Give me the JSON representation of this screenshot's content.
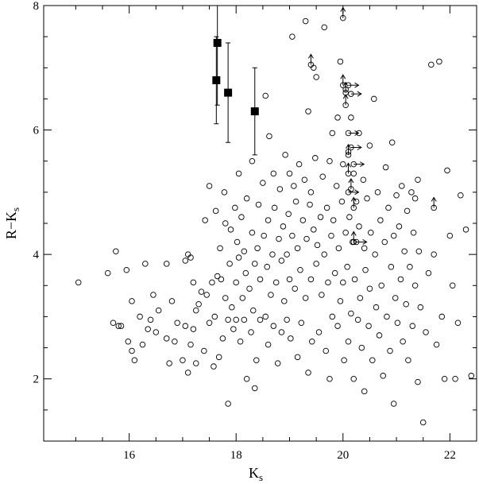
{
  "chart_data": {
    "type": "scatter",
    "title": "",
    "xlabel": "K",
    "xlabel_sub": "s",
    "ylabel": "R−K",
    "ylabel_sub": "s",
    "xlim": [
      14.4,
      22.5
    ],
    "ylim": [
      1.0,
      8.0
    ],
    "xticks": [
      16,
      18,
      20,
      22
    ],
    "yticks": [
      2,
      4,
      6,
      8
    ],
    "xtick_labels": [
      "16",
      "18",
      "20",
      "22"
    ],
    "ytick_labels": [
      "2",
      "4",
      "6",
      "8"
    ],
    "grid": false,
    "legend": "none",
    "series": [
      {
        "marker": "open-circle",
        "points": [
          [
            15.05,
            3.55
          ],
          [
            15.6,
            3.7
          ],
          [
            15.7,
            2.9
          ],
          [
            15.75,
            4.05
          ],
          [
            15.8,
            2.85
          ],
          [
            15.85,
            2.85
          ],
          [
            15.95,
            3.75
          ],
          [
            15.98,
            2.6
          ],
          [
            16.05,
            3.25
          ],
          [
            16.05,
            2.45
          ],
          [
            16.1,
            2.3
          ],
          [
            16.2,
            3.0
          ],
          [
            16.25,
            2.55
          ],
          [
            16.3,
            3.85
          ],
          [
            16.35,
            2.8
          ],
          [
            16.4,
            2.95
          ],
          [
            16.45,
            3.35
          ],
          [
            16.5,
            2.75
          ],
          [
            16.55,
            3.1
          ],
          [
            16.7,
            3.85
          ],
          [
            16.75,
            2.25
          ],
          [
            16.8,
            3.25
          ],
          [
            16.85,
            2.6
          ],
          [
            16.9,
            2.9
          ],
          [
            17.0,
            2.3
          ],
          [
            17.05,
            3.9
          ],
          [
            17.05,
            2.85
          ],
          [
            17.1,
            4.0
          ],
          [
            17.1,
            2.1
          ],
          [
            17.15,
            3.95
          ],
          [
            17.15,
            2.55
          ],
          [
            17.2,
            3.55
          ],
          [
            17.2,
            2.8
          ],
          [
            17.25,
            3.1
          ],
          [
            17.3,
            3.2
          ],
          [
            17.35,
            3.4
          ],
          [
            17.4,
            2.45
          ],
          [
            17.42,
            4.55
          ],
          [
            17.45,
            3.35
          ],
          [
            17.5,
            5.1
          ],
          [
            17.5,
            2.9
          ],
          [
            17.55,
            3.55
          ],
          [
            17.58,
            2.2
          ],
          [
            17.6,
            3.0
          ],
          [
            17.62,
            4.7
          ],
          [
            17.65,
            3.65
          ],
          [
            17.68,
            2.35
          ],
          [
            17.7,
            4.1
          ],
          [
            17.72,
            3.6
          ],
          [
            17.75,
            2.65
          ],
          [
            17.78,
            5.0
          ],
          [
            17.8,
            3.3
          ],
          [
            17.8,
            4.5
          ],
          [
            17.85,
            2.95
          ],
          [
            17.85,
            1.6
          ],
          [
            17.88,
            3.85
          ],
          [
            17.9,
            4.4
          ],
          [
            17.92,
            3.15
          ],
          [
            17.95,
            2.8
          ],
          [
            17.98,
            4.75
          ],
          [
            18.0,
            3.55
          ],
          [
            18.0,
            2.95
          ],
          [
            18.02,
            4.2
          ],
          [
            18.05,
            3.95
          ],
          [
            18.05,
            5.3
          ],
          [
            18.08,
            2.6
          ],
          [
            18.1,
            4.6
          ],
          [
            18.12,
            3.3
          ],
          [
            18.15,
            2.95
          ],
          [
            18.15,
            4.05
          ],
          [
            18.18,
            3.7
          ],
          [
            18.2,
            2.0
          ],
          [
            18.2,
            4.9
          ],
          [
            18.25,
            3.45
          ],
          [
            18.28,
            2.75
          ],
          [
            18.3,
            4.35
          ],
          [
            18.3,
            5.5
          ],
          [
            18.32,
            3.1
          ],
          [
            18.35,
            3.85
          ],
          [
            18.38,
            2.3
          ],
          [
            18.4,
            4.1
          ],
          [
            18.42,
            4.8
          ],
          [
            18.45,
            3.6
          ],
          [
            18.45,
            2.95
          ],
          [
            18.5,
            5.15
          ],
          [
            18.52,
            4.3
          ],
          [
            18.55,
            3.0
          ],
          [
            18.55,
            6.55
          ],
          [
            18.58,
            3.8
          ],
          [
            18.6,
            2.55
          ],
          [
            18.6,
            4.55
          ],
          [
            18.62,
            5.9
          ],
          [
            18.65,
            3.35
          ],
          [
            18.68,
            4.0
          ],
          [
            18.7,
            2.85
          ],
          [
            18.7,
            5.3
          ],
          [
            18.72,
            4.75
          ],
          [
            18.75,
            3.55
          ],
          [
            18.78,
            2.25
          ],
          [
            18.8,
            4.25
          ],
          [
            18.82,
            5.05
          ],
          [
            18.85,
            3.9
          ],
          [
            18.85,
            2.75
          ],
          [
            18.88,
            4.45
          ],
          [
            18.9,
            3.25
          ],
          [
            18.92,
            5.6
          ],
          [
            18.95,
            4.0
          ],
          [
            18.95,
            2.95
          ],
          [
            18.98,
            4.65
          ],
          [
            19.0,
            5.3
          ],
          [
            19.0,
            3.6
          ],
          [
            19.02,
            2.65
          ],
          [
            19.05,
            4.3
          ],
          [
            19.05,
            7.5
          ],
          [
            19.08,
            5.1
          ],
          [
            19.1,
            3.45
          ],
          [
            19.12,
            4.85
          ],
          [
            19.15,
            2.35
          ],
          [
            19.15,
            4.1
          ],
          [
            19.18,
            5.45
          ],
          [
            19.2,
            3.75
          ],
          [
            19.22,
            2.9
          ],
          [
            19.25,
            4.55
          ],
          [
            19.28,
            5.2
          ],
          [
            19.3,
            3.3
          ],
          [
            19.3,
            7.75
          ],
          [
            19.32,
            4.25
          ],
          [
            19.35,
            2.1
          ],
          [
            19.35,
            6.3
          ],
          [
            19.38,
            4.8
          ],
          [
            19.4,
            3.6
          ],
          [
            19.4,
            5.0
          ],
          [
            19.42,
            2.6
          ],
          [
            19.45,
            4.4
          ],
          [
            19.45,
            7.0
          ],
          [
            19.48,
            5.55
          ],
          [
            19.5,
            3.85
          ],
          [
            19.5,
            6.85
          ],
          [
            19.52,
            4.15
          ],
          [
            19.55,
            2.75
          ],
          [
            19.58,
            4.6
          ],
          [
            19.6,
            3.35
          ],
          [
            19.62,
            5.25
          ],
          [
            19.65,
            4.0
          ],
          [
            19.65,
            7.65
          ],
          [
            19.68,
            2.45
          ],
          [
            19.7,
            4.75
          ],
          [
            19.72,
            3.55
          ],
          [
            19.75,
            5.5
          ],
          [
            19.75,
            2.0
          ],
          [
            19.78,
            4.3
          ],
          [
            19.8,
            3.0
          ],
          [
            19.8,
            5.95
          ],
          [
            19.82,
            4.55
          ],
          [
            19.85,
            3.7
          ],
          [
            19.88,
            5.1
          ],
          [
            19.9,
            2.85
          ],
          [
            19.9,
            6.2
          ],
          [
            19.92,
            4.1
          ],
          [
            19.95,
            7.1
          ],
          [
            19.95,
            3.25
          ],
          [
            19.98,
            4.85
          ],
          [
            20.0,
            5.45
          ],
          [
            20.0,
            3.55
          ],
          [
            20.02,
            2.3
          ],
          [
            20.05,
            4.35
          ],
          [
            20.05,
            6.65
          ],
          [
            20.08,
            3.8
          ],
          [
            20.1,
            5.65
          ],
          [
            20.1,
            2.6
          ],
          [
            20.12,
            4.6
          ],
          [
            20.15,
            3.05
          ],
          [
            20.15,
            6.2
          ],
          [
            20.18,
            4.2
          ],
          [
            20.2,
            5.3
          ],
          [
            20.2,
            2.0
          ],
          [
            20.22,
            3.6
          ],
          [
            20.25,
            4.85
          ],
          [
            20.28,
            2.95
          ],
          [
            20.3,
            5.95
          ],
          [
            20.3,
            4.45
          ],
          [
            20.32,
            3.3
          ],
          [
            20.35,
            2.5
          ],
          [
            20.38,
            5.2
          ],
          [
            20.4,
            4.1
          ],
          [
            20.4,
            1.8
          ],
          [
            20.42,
            3.75
          ],
          [
            20.45,
            4.9
          ],
          [
            20.48,
            2.85
          ],
          [
            20.5,
            5.75
          ],
          [
            20.5,
            3.45
          ],
          [
            20.52,
            4.35
          ],
          [
            20.55,
            2.3
          ],
          [
            20.58,
            6.5
          ],
          [
            20.6,
            4.0
          ],
          [
            20.62,
            3.15
          ],
          [
            20.65,
            5.0
          ],
          [
            20.68,
            2.7
          ],
          [
            20.7,
            4.55
          ],
          [
            20.72,
            3.5
          ],
          [
            20.75,
            2.05
          ],
          [
            20.78,
            4.2
          ],
          [
            20.8,
            5.4
          ],
          [
            20.82,
            3.0
          ],
          [
            20.85,
            4.75
          ],
          [
            20.88,
            2.45
          ],
          [
            20.9,
            3.8
          ],
          [
            20.92,
            5.8
          ],
          [
            20.95,
            4.3
          ],
          [
            20.95,
            1.6
          ],
          [
            20.98,
            3.3
          ],
          [
            21.0,
            4.95
          ],
          [
            21.02,
            2.9
          ],
          [
            21.05,
            4.45
          ],
          [
            21.08,
            3.6
          ],
          [
            21.1,
            5.1
          ],
          [
            21.12,
            2.6
          ],
          [
            21.15,
            4.05
          ],
          [
            21.18,
            3.2
          ],
          [
            21.2,
            4.7
          ],
          [
            21.22,
            2.3
          ],
          [
            21.25,
            3.8
          ],
          [
            21.28,
            5.0
          ],
          [
            21.3,
            2.85
          ],
          [
            21.32,
            4.35
          ],
          [
            21.35,
            3.5
          ],
          [
            21.4,
            1.95
          ],
          [
            21.42,
            4.05
          ],
          [
            21.45,
            3.15
          ],
          [
            21.5,
            1.3
          ],
          [
            21.55,
            2.75
          ],
          [
            21.6,
            3.7
          ],
          [
            21.65,
            7.05
          ],
          [
            21.7,
            4.0
          ],
          [
            21.75,
            2.55
          ],
          [
            21.8,
            7.1
          ],
          [
            21.85,
            3.0
          ],
          [
            21.9,
            2.0
          ],
          [
            21.95,
            5.35
          ],
          [
            22.0,
            4.3
          ],
          [
            22.05,
            3.5
          ],
          [
            22.1,
            2.0
          ],
          [
            22.15,
            2.9
          ],
          [
            22.2,
            4.95
          ],
          [
            22.3,
            4.4
          ],
          [
            22.4,
            2.05
          ],
          [
            21.4,
            5.2
          ],
          [
            21.35,
            4.9
          ],
          [
            18.35,
            1.85
          ],
          [
            17.25,
            2.25
          ],
          [
            16.7,
            2.65
          ]
        ]
      },
      {
        "marker": "open-circle-upper-limit",
        "points": [
          [
            20.0,
            7.8
          ],
          [
            20.0,
            6.72
          ],
          [
            20.05,
            6.6
          ],
          [
            20.1,
            5.6
          ],
          [
            20.1,
            5.3
          ],
          [
            20.15,
            5.05
          ],
          [
            20.2,
            4.75
          ],
          [
            20.2,
            4.2
          ],
          [
            19.4,
            7.05
          ],
          [
            21.7,
            4.75
          ],
          [
            20.05,
            6.4
          ]
        ]
      },
      {
        "marker": "open-circle-right-limit",
        "points": [
          [
            20.1,
            6.72
          ],
          [
            20.15,
            6.58
          ],
          [
            20.1,
            5.95
          ],
          [
            20.15,
            5.72
          ],
          [
            20.2,
            5.45
          ],
          [
            20.25,
            4.2
          ],
          [
            20.1,
            5.0
          ]
        ]
      },
      {
        "marker": "filled-square-errorbar",
        "points": [
          {
            "x": 17.65,
            "y": 7.4,
            "ylo": 6.4,
            "yhi": 8.0
          },
          {
            "x": 17.63,
            "y": 6.8,
            "ylo": 6.1,
            "yhi": 7.5
          },
          {
            "x": 17.85,
            "y": 6.6,
            "ylo": 5.8,
            "yhi": 7.4
          },
          {
            "x": 18.35,
            "y": 6.3,
            "ylo": 5.6,
            "yhi": 7.0
          }
        ]
      }
    ]
  }
}
